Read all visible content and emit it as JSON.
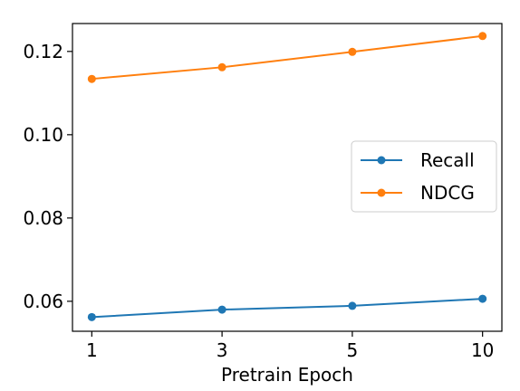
{
  "chart_data": {
    "type": "line",
    "title": "",
    "xlabel": "Pretrain Epoch",
    "ylabel": "",
    "categories": [
      "1",
      "3",
      "5",
      "10"
    ],
    "ylim": [
      0.0528,
      0.1267
    ],
    "yticks": [
      0.06,
      0.08,
      0.1,
      0.12
    ],
    "ytick_labels": [
      "0.06",
      "0.08",
      "0.10",
      "0.12"
    ],
    "grid": false,
    "legend_position": "center-right",
    "series": [
      {
        "name": "Recall",
        "color": "#1f77b4",
        "values": [
          0.0562,
          0.058,
          0.0589,
          0.0606
        ]
      },
      {
        "name": "NDCG",
        "color": "#ff7f0e",
        "values": [
          0.1134,
          0.1162,
          0.1199,
          0.1237
        ]
      }
    ]
  }
}
